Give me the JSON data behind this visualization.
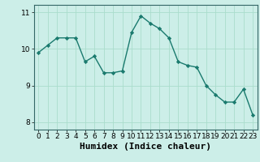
{
  "x": [
    0,
    1,
    2,
    3,
    4,
    5,
    6,
    7,
    8,
    9,
    10,
    11,
    12,
    13,
    14,
    15,
    16,
    17,
    18,
    19,
    20,
    21,
    22,
    23
  ],
  "y": [
    9.9,
    10.1,
    10.3,
    10.3,
    10.3,
    9.65,
    9.8,
    9.35,
    9.35,
    9.4,
    10.45,
    10.9,
    10.7,
    10.55,
    10.3,
    9.65,
    9.55,
    9.5,
    9.0,
    8.75,
    8.55,
    8.55,
    8.9,
    8.2
  ],
  "line_color": "#1a7a6e",
  "marker": "D",
  "marker_size": 2.2,
  "bg_color": "#cceee8",
  "grid_color": "#aaddcc",
  "xlabel": "Humidex (Indice chaleur)",
  "xlabel_fontsize": 8,
  "ylim": [
    7.8,
    11.2
  ],
  "xlim": [
    -0.5,
    23.5
  ],
  "yticks": [
    8,
    9,
    10,
    11
  ],
  "xticks": [
    0,
    1,
    2,
    3,
    4,
    5,
    6,
    7,
    8,
    9,
    10,
    11,
    12,
    13,
    14,
    15,
    16,
    17,
    18,
    19,
    20,
    21,
    22,
    23
  ],
  "tick_fontsize": 6.5,
  "linewidth": 1.0
}
